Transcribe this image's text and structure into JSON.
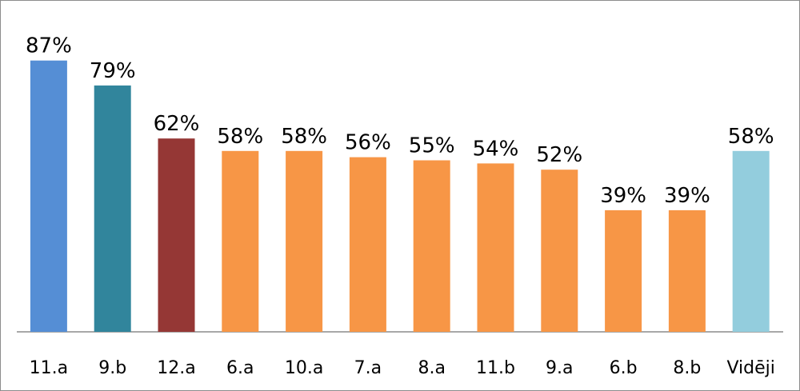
{
  "chart_data": {
    "type": "bar",
    "categories": [
      "11.a",
      "9.b",
      "12.a",
      "6.a",
      "10.a",
      "7.a",
      "8.a",
      "11.b",
      "9.a",
      "6.b",
      "8.b",
      "Vidēji"
    ],
    "values": [
      87,
      79,
      62,
      58,
      58,
      56,
      55,
      54,
      52,
      39,
      39,
      58
    ],
    "value_labels": [
      "87%",
      "79%",
      "62%",
      "58%",
      "58%",
      "56%",
      "55%",
      "54%",
      "52%",
      "39%",
      "39%",
      "58%"
    ],
    "bar_colors": [
      "#558ED5",
      "#31859C",
      "#953735",
      "#F79646",
      "#F79646",
      "#F79646",
      "#F79646",
      "#F79646",
      "#F79646",
      "#F79646",
      "#F79646",
      "#93CDDD"
    ],
    "ylim": [
      0,
      100
    ],
    "grid": false,
    "legend": "none",
    "title": "",
    "xlabel": "",
    "ylabel": ""
  }
}
